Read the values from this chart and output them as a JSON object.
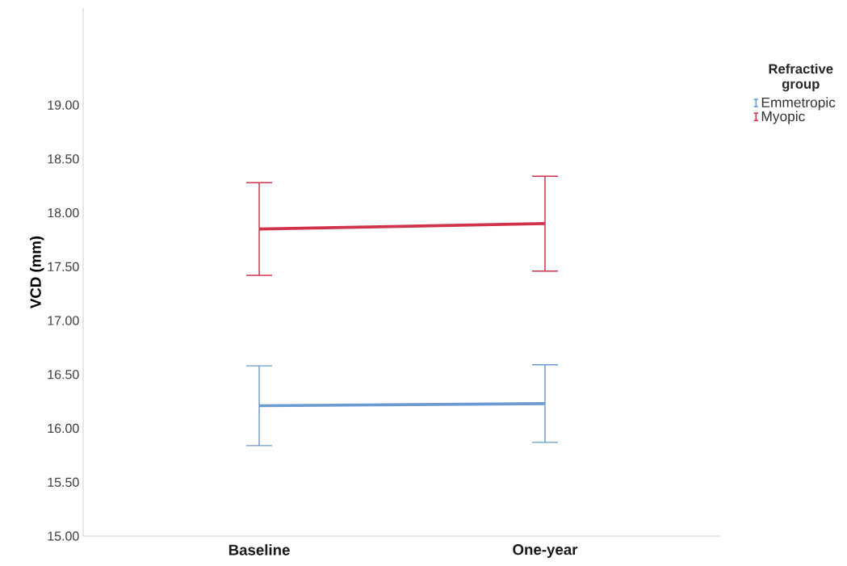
{
  "chart_data": {
    "type": "line",
    "ylabel": "VCD (mm)",
    "legend_title": "Refractive group",
    "categories": [
      "Baseline",
      "One-year"
    ],
    "series": [
      {
        "name": "Emmetropic",
        "color": "#6a9bd1",
        "values": [
          16.21,
          16.23
        ],
        "errors": [
          0.37,
          0.36
        ]
      },
      {
        "name": "Myopic",
        "color": "#d1334a",
        "values": [
          17.85,
          17.9
        ],
        "errors": [
          0.43,
          0.44
        ]
      }
    ],
    "ylim": [
      15,
      19.9
    ],
    "yticks": [
      {
        "value": 15,
        "label": "15.00"
      },
      {
        "value": 15.5,
        "label": "15.50"
      },
      {
        "value": 16,
        "label": "16.00"
      },
      {
        "value": 16.5,
        "label": "16.50"
      },
      {
        "value": 17,
        "label": "17.00"
      },
      {
        "value": 17.5,
        "label": "17.50"
      },
      {
        "value": 18,
        "label": "18.00"
      },
      {
        "value": 18.5,
        "label": "18.50"
      },
      {
        "value": 19,
        "label": "19.00"
      }
    ],
    "grid": false,
    "legend": "top right",
    "marker": "none",
    "line_style": "solid"
  }
}
